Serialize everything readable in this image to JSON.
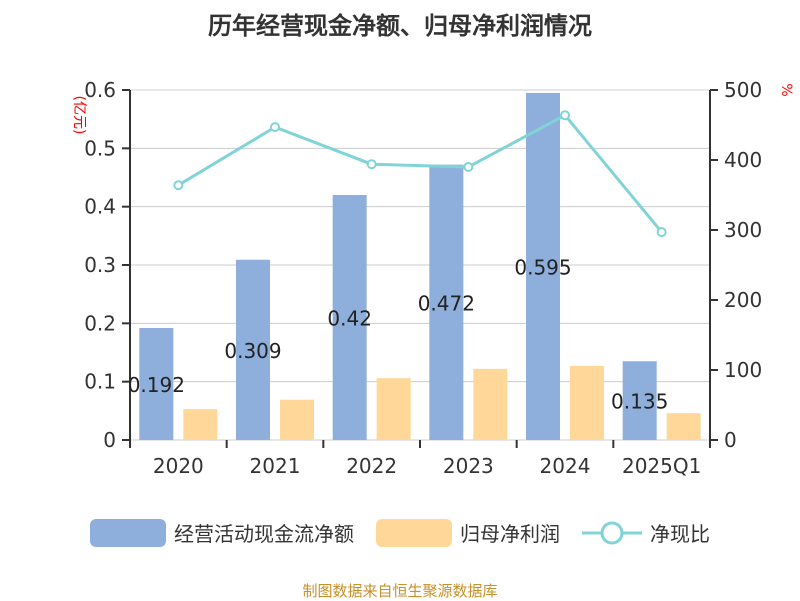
{
  "title": "历年经营现金净额、归母净利润情况",
  "chart_data": {
    "type": "bar",
    "title": "历年经营现金净额、归母净利润情况",
    "categories": [
      "2020",
      "2021",
      "2022",
      "2023",
      "2024",
      "2025Q1"
    ],
    "ylabel_left": "(亿元)",
    "ylabel_right": "%",
    "ylim_left": [
      0,
      0.6
    ],
    "ylim_right": [
      0,
      500
    ],
    "yticks_left": [
      "0",
      "0.1",
      "0.2",
      "0.3",
      "0.4",
      "0.5",
      "0.6"
    ],
    "yticks_right": [
      "0",
      "100",
      "200",
      "300",
      "400",
      "500"
    ],
    "grid": true,
    "legend_position": "bottom",
    "series": [
      {
        "name": "经营活动现金流净额",
        "type": "bar",
        "color": "#8eaedc",
        "values": [
          0.192,
          0.309,
          0.42,
          0.472,
          0.595,
          0.135
        ],
        "labels": [
          "0.192",
          "0.309",
          "0.42",
          "0.472",
          "0.595",
          "0.135"
        ]
      },
      {
        "name": "归母净利润",
        "type": "bar",
        "color": "#ffd899",
        "values": [
          0.053,
          0.069,
          0.106,
          0.122,
          0.127,
          0.046
        ]
      },
      {
        "name": "净现比",
        "type": "line",
        "axis": "right",
        "color": "#80d4d8",
        "values": [
          364,
          447,
          394,
          390,
          464,
          297
        ]
      }
    ]
  },
  "source": "制图数据来自恒生聚源数据库"
}
